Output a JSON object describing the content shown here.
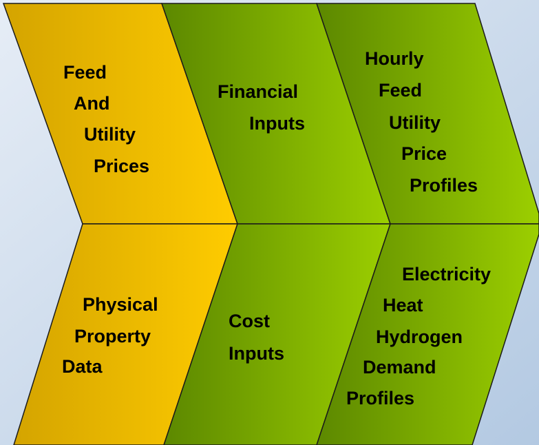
{
  "blocks": [
    {
      "lines": [
        "Feed",
        "And",
        "Utility",
        "Prices"
      ]
    },
    {
      "lines": [
        "Financial",
        "Inputs"
      ]
    },
    {
      "lines": [
        "Hourly",
        "Feed",
        "Utility",
        "Price",
        "Profiles"
      ]
    },
    {
      "lines": [
        "Physical",
        "Property",
        "Data"
      ]
    },
    {
      "lines": [
        "Cost",
        "Inputs"
      ]
    },
    {
      "lines": [
        "Electricity",
        "Heat",
        "Hydrogen",
        "Demand",
        "Profiles"
      ]
    }
  ]
}
